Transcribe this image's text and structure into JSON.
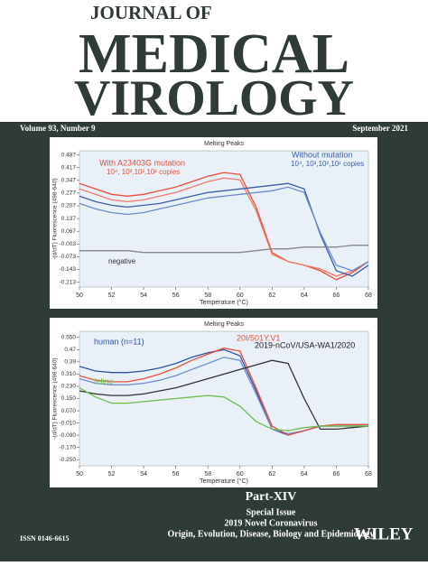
{
  "header": {
    "line1": "JOURNAL OF",
    "line2": "MEDICAL",
    "line3": "VIROLOGY",
    "volume": "Volume 93, Number 9",
    "date": "September 2021"
  },
  "chart_data": [
    {
      "type": "line",
      "title": "Melting Peaks",
      "xlabel": "Temperature (°C)",
      "ylabel": "-(d/dT) Fluorescence (498-640)",
      "x": [
        50,
        51,
        52,
        53,
        54,
        55,
        56,
        57,
        58,
        59,
        60,
        61,
        62,
        63,
        64,
        65,
        66,
        67,
        68
      ],
      "xlim": [
        50,
        68
      ],
      "xticks": [
        50,
        52,
        54,
        56,
        58,
        60,
        62,
        64,
        66,
        68
      ],
      "ylim": [
        -0.24,
        0.51
      ],
      "yticks": [
        0.487,
        0.417,
        0.347,
        0.277,
        0.207,
        0.137,
        0.067,
        -0.003,
        -0.073,
        -0.143,
        -0.213
      ],
      "annotations": [
        "With A23403G mutation",
        "10⁴, 10³,10²,10¹ copies",
        "Without mutation",
        "10⁴, 10³,10²,10¹ copies",
        "negative"
      ],
      "series": [
        {
          "color": "#e8503a",
          "values": [
            0.33,
            0.3,
            0.27,
            0.26,
            0.27,
            0.29,
            0.31,
            0.34,
            0.37,
            0.39,
            0.38,
            0.2,
            -0.05,
            -0.1,
            -0.12,
            -0.15,
            -0.2,
            -0.16,
            -0.1
          ]
        },
        {
          "color": "#f07a6a",
          "values": [
            0.3,
            0.27,
            0.24,
            0.23,
            0.24,
            0.26,
            0.28,
            0.31,
            0.34,
            0.36,
            0.35,
            0.18,
            -0.06,
            -0.1,
            -0.12,
            -0.14,
            -0.18,
            -0.15,
            -0.1
          ]
        },
        {
          "color": "#3a5ea8",
          "values": [
            0.26,
            0.23,
            0.21,
            0.2,
            0.21,
            0.22,
            0.24,
            0.26,
            0.28,
            0.29,
            0.3,
            0.31,
            0.32,
            0.33,
            0.3,
            0.05,
            -0.15,
            -0.18,
            -0.12
          ]
        },
        {
          "color": "#6a8ccc",
          "values": [
            0.22,
            0.19,
            0.17,
            0.16,
            0.17,
            0.19,
            0.21,
            0.23,
            0.25,
            0.26,
            0.27,
            0.28,
            0.29,
            0.31,
            0.28,
            0.06,
            -0.12,
            -0.15,
            -0.1
          ]
        },
        {
          "color": "#888888",
          "values": [
            -0.04,
            -0.04,
            -0.04,
            -0.04,
            -0.05,
            -0.05,
            -0.05,
            -0.05,
            -0.05,
            -0.05,
            -0.05,
            -0.04,
            -0.03,
            -0.03,
            -0.02,
            -0.02,
            -0.02,
            -0.01,
            -0.01
          ]
        }
      ]
    },
    {
      "type": "line",
      "title": "Melting Peaks",
      "xlabel": "Temperature (°C)",
      "ylabel": "-(d/dT) Fluorescence (498-640)",
      "x": [
        50,
        51,
        52,
        53,
        54,
        55,
        56,
        57,
        58,
        59,
        60,
        61,
        62,
        63,
        64,
        65,
        66,
        67,
        68
      ],
      "xlim": [
        50,
        68
      ],
      "xticks": [
        50,
        52,
        54,
        56,
        58,
        60,
        62,
        64,
        66,
        68
      ],
      "ylim": [
        -0.29,
        0.59
      ],
      "yticks": [
        {
          "value": 0.55,
          "label": "0.550"
        },
        0.47,
        0.39,
        {
          "value": 0.31,
          "label": "0.310"
        },
        {
          "value": 0.23,
          "label": "0.230"
        },
        {
          "value": 0.15,
          "label": "0.150"
        },
        {
          "value": 0.07,
          "label": "0.070"
        },
        {
          "value": -0.01,
          "label": "-0.010"
        },
        {
          "value": -0.09,
          "label": "-0.090"
        },
        {
          "value": -0.17,
          "label": "-0.170"
        },
        {
          "value": -0.25,
          "label": "-0.250"
        }
      ],
      "annotations": [
        "human (n=11)",
        "20I/501Y.V1",
        "2019-nCoV/USA-WA1/2020",
        "feline"
      ],
      "series": [
        {
          "color": "#2f52a4",
          "values": [
            0.36,
            0.33,
            0.32,
            0.32,
            0.33,
            0.35,
            0.38,
            0.42,
            0.45,
            0.47,
            0.43,
            0.2,
            -0.05,
            -0.09,
            -0.06,
            -0.03,
            -0.03,
            -0.03,
            -0.03
          ]
        },
        {
          "color": "#6f8fd0",
          "values": [
            0.28,
            0.25,
            0.24,
            0.24,
            0.25,
            0.27,
            0.3,
            0.34,
            0.38,
            0.42,
            0.4,
            0.18,
            -0.05,
            -0.08,
            -0.06,
            -0.03,
            -0.03,
            -0.03,
            -0.03
          ]
        },
        {
          "color": "#e8503a",
          "values": [
            0.3,
            0.27,
            0.26,
            0.26,
            0.28,
            0.31,
            0.35,
            0.4,
            0.44,
            0.48,
            0.46,
            0.22,
            -0.03,
            -0.09,
            -0.06,
            -0.03,
            -0.02,
            -0.02,
            -0.02
          ]
        },
        {
          "color": "#333333",
          "values": [
            0.2,
            0.18,
            0.17,
            0.17,
            0.18,
            0.2,
            0.22,
            0.25,
            0.28,
            0.31,
            0.34,
            0.37,
            0.4,
            0.38,
            0.15,
            -0.05,
            -0.05,
            -0.04,
            -0.03
          ]
        },
        {
          "color": "#6cbf4a",
          "values": [
            0.22,
            0.16,
            0.12,
            0.12,
            0.13,
            0.14,
            0.15,
            0.16,
            0.17,
            0.16,
            0.1,
            0.0,
            -0.05,
            -0.06,
            -0.04,
            -0.03,
            -0.03,
            -0.03,
            -0.03
          ]
        }
      ]
    }
  ],
  "footer": {
    "part": "Part-XIV",
    "issue": "Special Issue",
    "topic1": "2019 Novel Coronavirus",
    "topic2": "Origin, Evolution, Disease, Biology and Epidemiology",
    "issn": "ISSN 0146-6615",
    "publisher": "WILEY"
  }
}
